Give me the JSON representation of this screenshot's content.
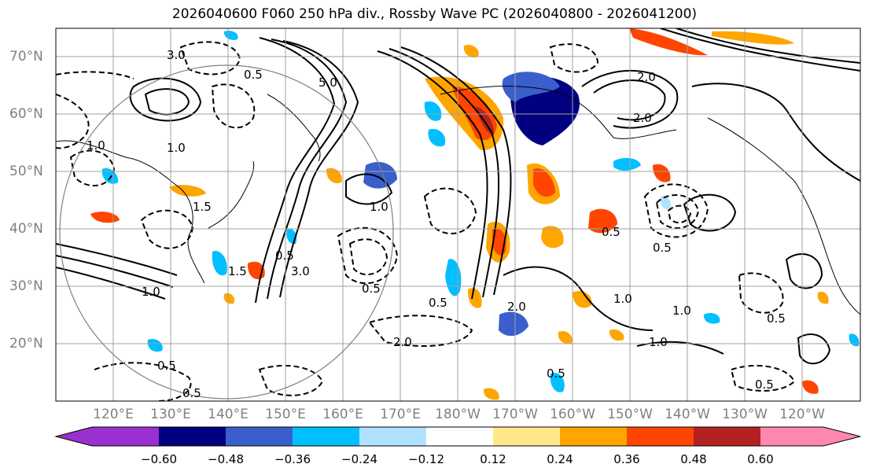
{
  "title": "2026040600 F060 250 hPa div., Rossby Wave PC (2026040800 - 2026041200)",
  "map": {
    "lat_labels": [
      "70°N",
      "60°N",
      "50°N",
      "40°N",
      "30°N",
      "20°N"
    ],
    "lon_labels": [
      "120°E",
      "130°E",
      "140°E",
      "150°E",
      "160°E",
      "170°E",
      "180°W",
      "170°W",
      "160°W",
      "150°W",
      "140°W",
      "130°W",
      "120°W"
    ],
    "contour_labels": [
      "3.0",
      "2.0",
      "5.0",
      "0.5",
      "1.0",
      "1.5",
      "3.0",
      "0.5",
      "1.0",
      "1.5",
      "1.0",
      "2.0",
      "2.0",
      "0.5",
      "0.5",
      "1.0",
      "0.5",
      "1.0",
      "0.5",
      "1.0",
      "0.5",
      "0.5",
      "0.5",
      "0.5",
      "1.0",
      "2.0",
      "0.5"
    ]
  },
  "colorbar": {
    "ticks": [
      "−0.60",
      "−0.48",
      "−0.36",
      "−0.24",
      "−0.12",
      "0.12",
      "0.24",
      "0.36",
      "0.48",
      "0.60"
    ],
    "colors": [
      "#9b30d0",
      "#000080",
      "#3a5fcd",
      "#00bfff",
      "#b0e2ff",
      "#ffffff",
      "#ffe88a",
      "#ffa500",
      "#ff4500",
      "#b22222",
      "#ff88b0"
    ],
    "extend": "both"
  },
  "style_colors": {
    "neg_strong": "#000080",
    "neg_mid": "#3a5fcd",
    "neg_light": "#00bfff",
    "pos_light": "#ffa500",
    "pos_mid": "#ff4500",
    "pos_strong": "#b22222",
    "grid": "#a0a0a0",
    "label": "#808080"
  }
}
